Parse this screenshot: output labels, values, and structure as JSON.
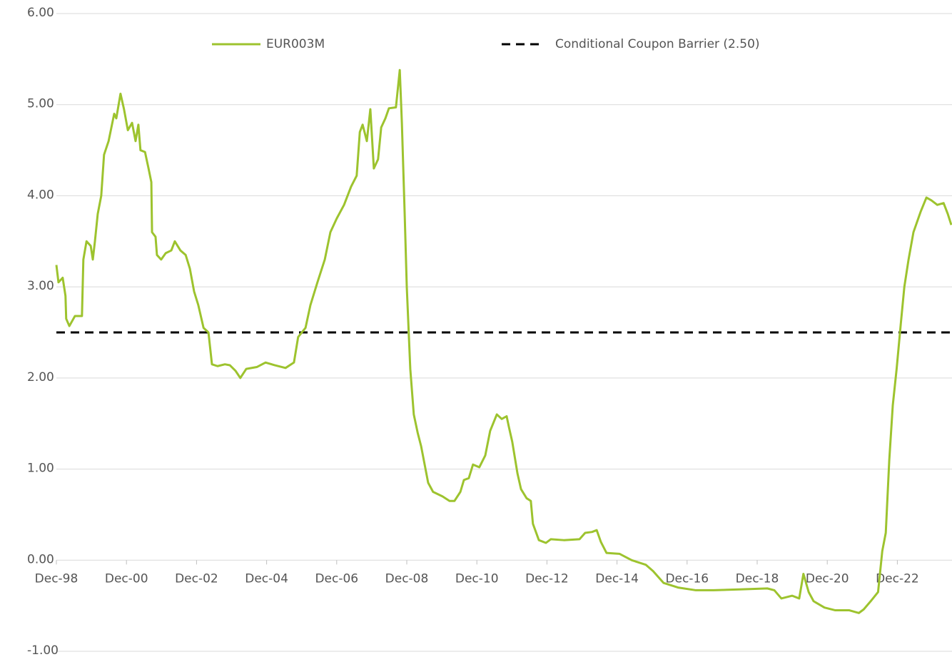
{
  "chart_data": {
    "type": "line",
    "x": [
      1998.92,
      1998.98,
      1999.1,
      1999.18,
      1999.2,
      1999.29,
      1999.45,
      1999.65,
      1999.69,
      1999.78,
      1999.9,
      1999.96,
      2000.02,
      2000.1,
      2000.2,
      2000.28,
      2000.41,
      2000.57,
      2000.63,
      2000.75,
      2000.85,
      2000.96,
      2001.08,
      2001.18,
      2001.26,
      2001.32,
      2001.45,
      2001.55,
      2001.63,
      2001.65,
      2001.75,
      2001.79,
      2001.91,
      2002.04,
      2002.2,
      2002.3,
      2002.46,
      2002.61,
      2002.73,
      2002.85,
      2002.97,
      2003.12,
      2003.26,
      2003.36,
      2003.52,
      2003.73,
      2003.87,
      2004.03,
      2004.17,
      2004.34,
      2004.64,
      2004.89,
      2005.15,
      2005.46,
      2005.7,
      2005.82,
      2006.03,
      2006.17,
      2006.37,
      2006.58,
      2006.74,
      2006.92,
      2007.13,
      2007.33,
      2007.49,
      2007.58,
      2007.66,
      2007.78,
      2007.88,
      2007.98,
      2008.1,
      2008.19,
      2008.31,
      2008.41,
      2008.61,
      2008.72,
      2008.78,
      2008.86,
      2008.92,
      2009.02,
      2009.12,
      2009.23,
      2009.33,
      2009.43,
      2009.53,
      2009.67,
      2009.94,
      2010.14,
      2010.28,
      2010.45,
      2010.55,
      2010.69,
      2010.81,
      2010.99,
      2011.16,
      2011.3,
      2011.49,
      2011.63,
      2011.77,
      2011.83,
      2011.93,
      2012.08,
      2012.18,
      2012.34,
      2012.46,
      2012.52,
      2012.69,
      2012.89,
      2013.03,
      2013.4,
      2013.85,
      2014.01,
      2014.21,
      2014.34,
      2014.46,
      2014.62,
      2014.99,
      2015.34,
      2015.74,
      2015.95,
      2016.25,
      2016.66,
      2017.17,
      2017.68,
      2018.49,
      2019.21,
      2019.41,
      2019.61,
      2019.92,
      2020.12,
      2020.24,
      2020.39,
      2020.53,
      2020.84,
      2021.15,
      2021.55,
      2021.82,
      2021.96,
      2022.16,
      2022.37,
      2022.49,
      2022.59,
      2022.69,
      2022.79,
      2022.9,
      2023.02,
      2023.12,
      2023.24,
      2023.38,
      2023.59,
      2023.75,
      2023.89,
      2024.06,
      2024.24,
      2024.36,
      2024.46
    ],
    "series": [
      {
        "name": "EUR003M",
        "color": "#9dc32e",
        "values": [
          3.24,
          3.05,
          3.1,
          2.9,
          2.65,
          2.57,
          2.68,
          2.68,
          3.3,
          3.5,
          3.45,
          3.3,
          3.5,
          3.8,
          4.0,
          4.45,
          4.6,
          4.9,
          4.85,
          5.12,
          4.95,
          4.72,
          4.8,
          4.6,
          4.78,
          4.5,
          4.48,
          4.3,
          4.15,
          3.6,
          3.55,
          3.35,
          3.3,
          3.37,
          3.4,
          3.5,
          3.4,
          3.35,
          3.2,
          2.95,
          2.8,
          2.55,
          2.5,
          2.15,
          2.13,
          2.15,
          2.14,
          2.08,
          2.0,
          2.1,
          2.12,
          2.17,
          2.14,
          2.11,
          2.17,
          2.45,
          2.55,
          2.8,
          3.05,
          3.3,
          3.6,
          3.75,
          3.9,
          4.1,
          4.22,
          4.7,
          4.78,
          4.6,
          4.95,
          4.3,
          4.4,
          4.75,
          4.85,
          4.96,
          4.97,
          5.38,
          4.8,
          3.8,
          3.0,
          2.1,
          1.6,
          1.4,
          1.25,
          1.05,
          0.85,
          0.75,
          0.7,
          0.65,
          0.65,
          0.75,
          0.88,
          0.9,
          1.05,
          1.02,
          1.15,
          1.42,
          1.6,
          1.55,
          1.58,
          1.47,
          1.3,
          0.95,
          0.78,
          0.68,
          0.65,
          0.4,
          0.22,
          0.19,
          0.23,
          0.22,
          0.23,
          0.3,
          0.31,
          0.33,
          0.2,
          0.08,
          0.07,
          0.0,
          -0.05,
          -0.12,
          -0.25,
          -0.3,
          -0.33,
          -0.33,
          -0.32,
          -0.31,
          -0.33,
          -0.42,
          -0.39,
          -0.42,
          -0.15,
          -0.35,
          -0.45,
          -0.52,
          -0.55,
          -0.55,
          -0.58,
          -0.54,
          -0.45,
          -0.35,
          0.1,
          0.3,
          1.1,
          1.7,
          2.1,
          2.6,
          3.0,
          3.3,
          3.6,
          3.83,
          3.98,
          3.95,
          3.9,
          3.92,
          3.8,
          3.68
        ]
      }
    ],
    "reference_lines": [
      {
        "name": "Conditional Coupon Barrier (2.50)",
        "value": 2.5,
        "color": "#000000",
        "dashed": true
      }
    ],
    "xlim": [
      1998.92,
      2024.48
    ],
    "xticks": [
      {
        "value": 1998.92,
        "label": "Dec-98"
      },
      {
        "value": 2000.92,
        "label": "Dec-00"
      },
      {
        "value": 2002.92,
        "label": "Dec-02"
      },
      {
        "value": 2004.92,
        "label": "Dec-04"
      },
      {
        "value": 2006.92,
        "label": "Dec-06"
      },
      {
        "value": 2008.92,
        "label": "Dec-08"
      },
      {
        "value": 2010.92,
        "label": "Dec-10"
      },
      {
        "value": 2012.92,
        "label": "Dec-12"
      },
      {
        "value": 2014.92,
        "label": "Dec-14"
      },
      {
        "value": 2016.92,
        "label": "Dec-16"
      },
      {
        "value": 2018.92,
        "label": "Dec-18"
      },
      {
        "value": 2020.92,
        "label": "Dec-20"
      },
      {
        "value": 2022.92,
        "label": "Dec-22"
      }
    ],
    "ylim": [
      -1,
      6
    ],
    "yticks": [
      {
        "value": -1,
        "label": "-1.00"
      },
      {
        "value": 0,
        "label": "0.00"
      },
      {
        "value": 1,
        "label": "1.00"
      },
      {
        "value": 2,
        "label": "2.00"
      },
      {
        "value": 3,
        "label": "3.00"
      },
      {
        "value": 4,
        "label": "4.00"
      },
      {
        "value": 5,
        "label": "5.00"
      },
      {
        "value": 6,
        "label": "6.00"
      }
    ],
    "grid": true,
    "legend": "top"
  }
}
